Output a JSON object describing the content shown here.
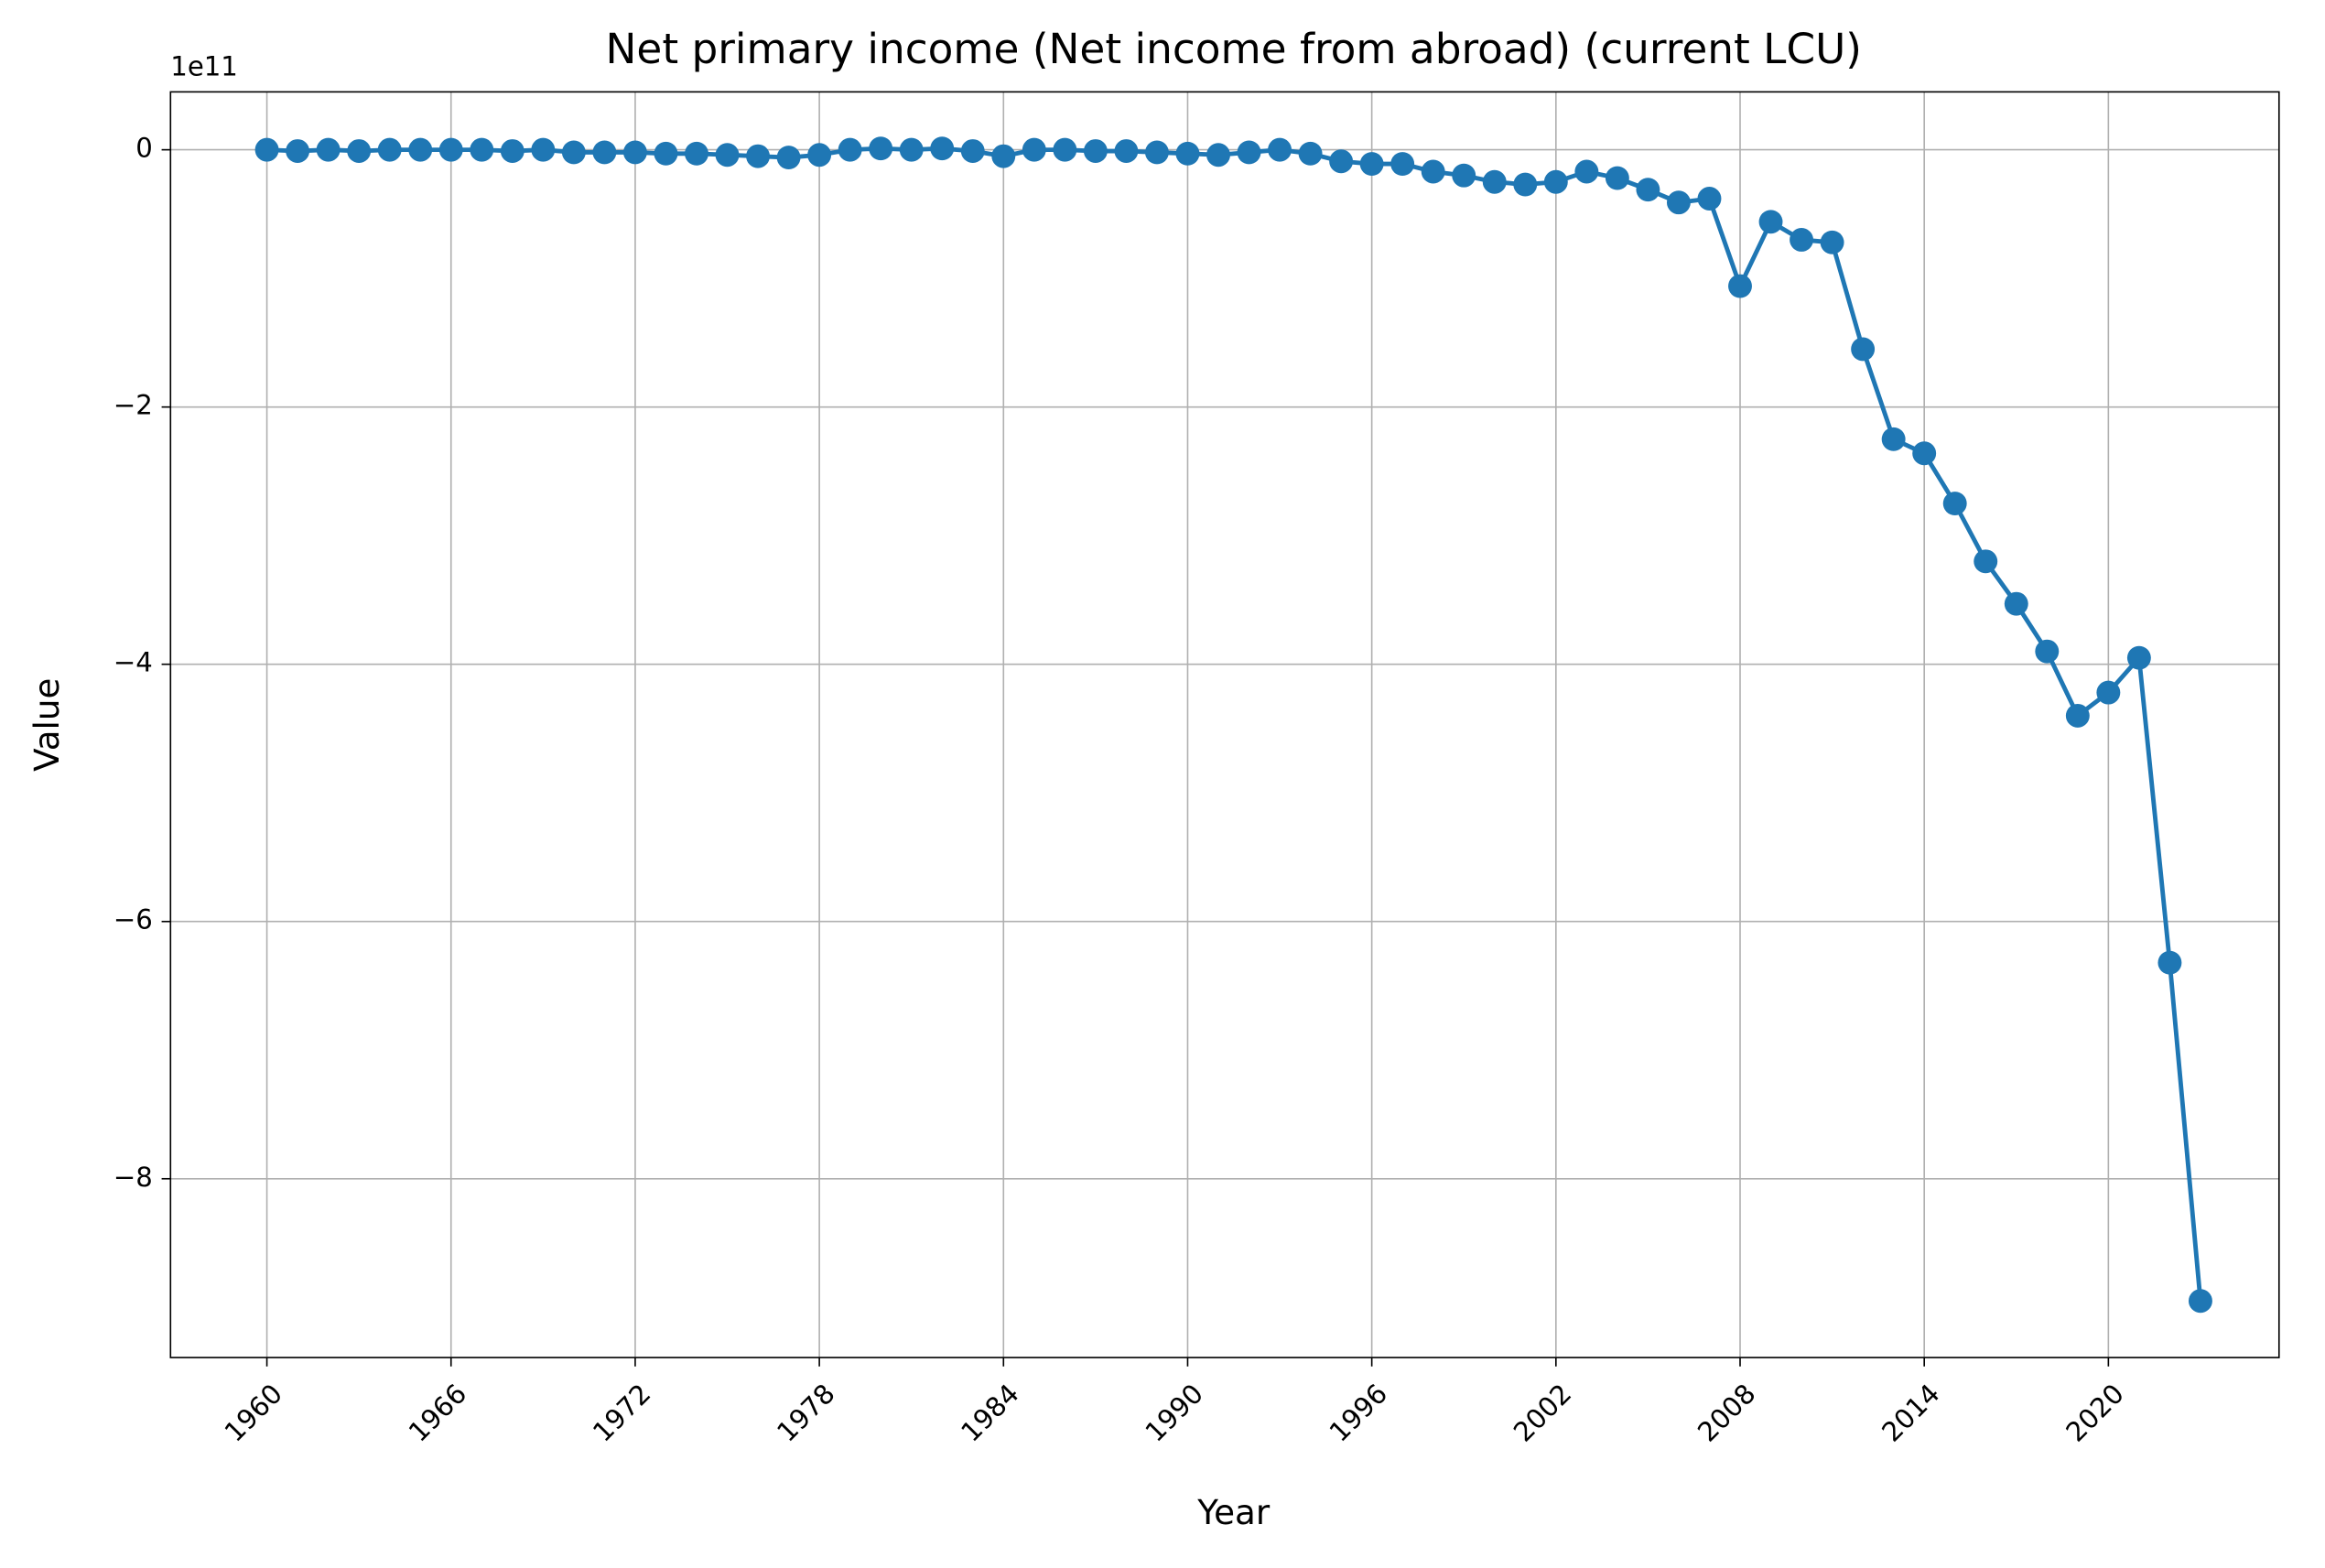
{
  "chart_data": {
    "type": "line",
    "title": "Net primary income (Net income from abroad) (current LCU)",
    "xlabel": "Year",
    "ylabel": "Value",
    "y_offset_label": "1e11",
    "x": [
      1960,
      1961,
      1962,
      1963,
      1964,
      1965,
      1966,
      1967,
      1968,
      1969,
      1970,
      1971,
      1972,
      1973,
      1974,
      1975,
      1976,
      1977,
      1978,
      1979,
      1980,
      1981,
      1982,
      1983,
      1984,
      1985,
      1986,
      1987,
      1988,
      1989,
      1990,
      1991,
      1992,
      1993,
      1994,
      1995,
      1996,
      1997,
      1998,
      1999,
      2000,
      2001,
      2002,
      2003,
      2004,
      2005,
      2006,
      2007,
      2008,
      2009,
      2010,
      2011,
      2012,
      2013,
      2014,
      2015,
      2016,
      2017,
      2018,
      2019,
      2020,
      2021,
      2022,
      2023
    ],
    "values": [
      0,
      -0.01,
      0,
      -0.01,
      0,
      0,
      0,
      0,
      -0.01,
      0,
      -0.02,
      -0.02,
      -0.02,
      -0.03,
      -0.03,
      -0.04,
      -0.05,
      -0.06,
      -0.04,
      0,
      0.01,
      0,
      0.01,
      -0.01,
      -0.05,
      0,
      0,
      -0.01,
      -0.01,
      -0.02,
      -0.03,
      -0.04,
      -0.02,
      0,
      -0.03,
      -0.09,
      -0.11,
      -0.11,
      -0.17,
      -0.2,
      -0.25,
      -0.27,
      -0.25,
      -0.17,
      -0.22,
      -0.31,
      -0.41,
      -0.38,
      -1.06,
      -0.56,
      -0.7,
      -0.72,
      -1.55,
      -2.25,
      -2.36,
      -2.75,
      -3.2,
      -3.53,
      -3.9,
      -4.4,
      -4.22,
      -3.95,
      -6.32,
      -8.95
    ],
    "color": "#1f77b4",
    "xlim": [
      1956.86,
      2025.56
    ],
    "ylim": [
      -9.39,
      0.45
    ],
    "xticks": [
      1960,
      1966,
      1972,
      1978,
      1984,
      1990,
      1996,
      2002,
      2008,
      2014,
      2020
    ],
    "yticks": [
      0,
      {
        "value": -2,
        "label": "−2"
      },
      {
        "value": -4,
        "label": "−4"
      },
      {
        "value": -6,
        "label": "−6"
      },
      {
        "value": -8,
        "label": "−8"
      }
    ],
    "grid": true
  }
}
